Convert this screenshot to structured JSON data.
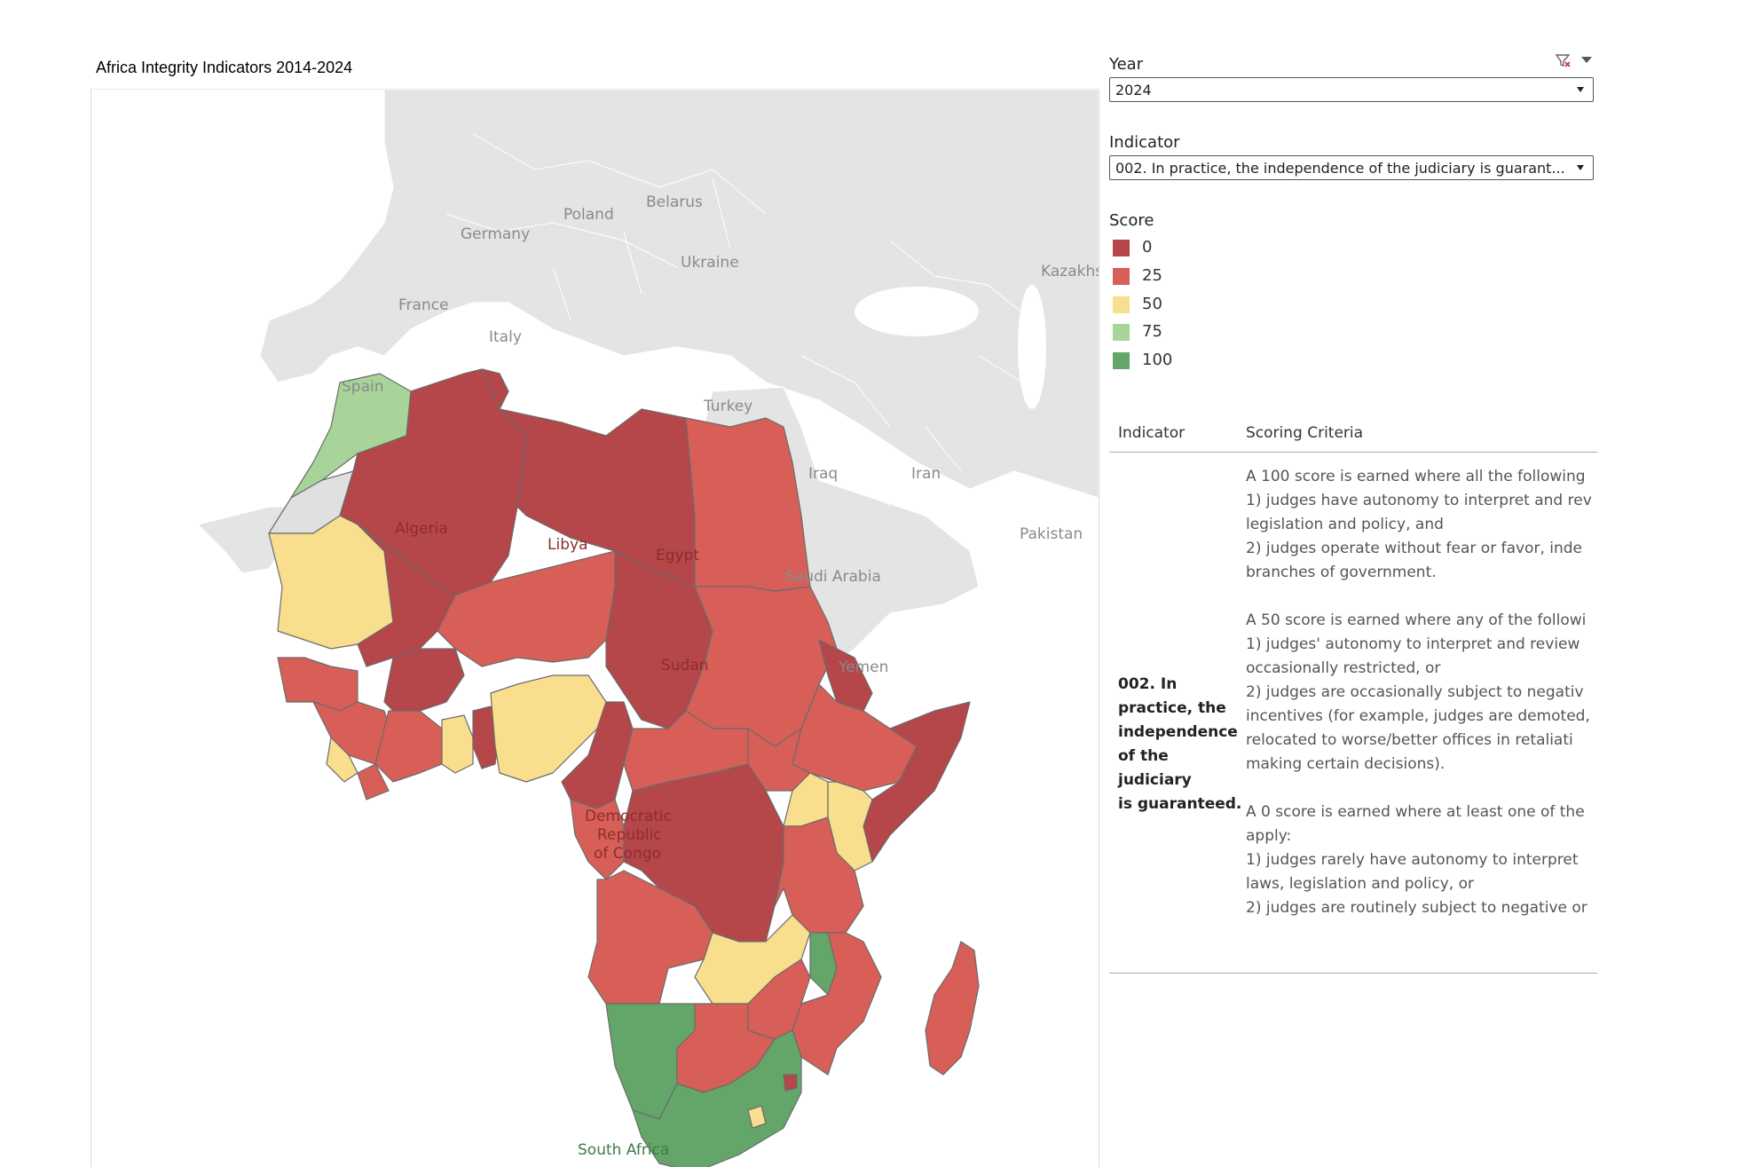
{
  "title": "Africa Integrity Indicators 2014-2024",
  "filters": {
    "year": {
      "label": "Year",
      "value": "2024"
    },
    "indicator": {
      "label": "Indicator",
      "value": "002. In practice, the independence of the judiciary is guarant..."
    }
  },
  "legend": {
    "title": "Score",
    "items": [
      {
        "label": "0",
        "color": "#b5464a"
      },
      {
        "label": "25",
        "color": "#d75f57"
      },
      {
        "label": "50",
        "color": "#f9de8d"
      },
      {
        "label": "75",
        "color": "#a8d49a"
      },
      {
        "label": "100",
        "color": "#64a66a"
      }
    ]
  },
  "map_labels": {
    "belarus": "Belarus",
    "poland": "Poland",
    "germany": "Germany",
    "ukraine": "Ukraine",
    "france": "France",
    "italy": "Italy",
    "spain": "Spain",
    "turkey": "Turkey",
    "kazakhs": "Kazakhs",
    "iraq": "Iraq",
    "iran": "Iran",
    "pakistan": "Pakistan",
    "saudi_arabia": "Saudi Arabia",
    "yemen": "Yemen",
    "algeria": "Algeria",
    "libya": "Libya",
    "egypt": "Egypt",
    "sudan": "Sudan",
    "drc_1": "Democratic",
    "drc_2": "Republic",
    "drc_3": "of Congo",
    "south_africa": "South Africa"
  },
  "table": {
    "col_indicator": "Indicator",
    "col_criteria": "Scoring Criteria",
    "indicator_lines": [
      "002. In",
      "practice, the",
      "independence",
      "of the judiciary",
      "is guaranteed."
    ],
    "criteria_lines": [
      "A 100 score is earned where all the following",
      "1) judges have autonomy to interpret and rev",
      "legislation and policy, and",
      "2) judges operate without fear or favor, inde",
      "branches of government.",
      "",
      "A 50 score is earned where any of the followi",
      "1) judges' autonomy to interpret and review",
      "occasionally restricted, or",
      "2) judges are occasionally subject to negativ",
      "incentives (for example, judges are demoted,",
      "relocated to worse/better offices in retaliati",
      "making certain decisions).",
      "",
      "A 0 score is earned where at least one of the",
      "apply:",
      "1) judges rarely have autonomy to interpret",
      "laws, legislation and policy, or",
      "2) judges are routinely subject to negative or"
    ]
  }
}
